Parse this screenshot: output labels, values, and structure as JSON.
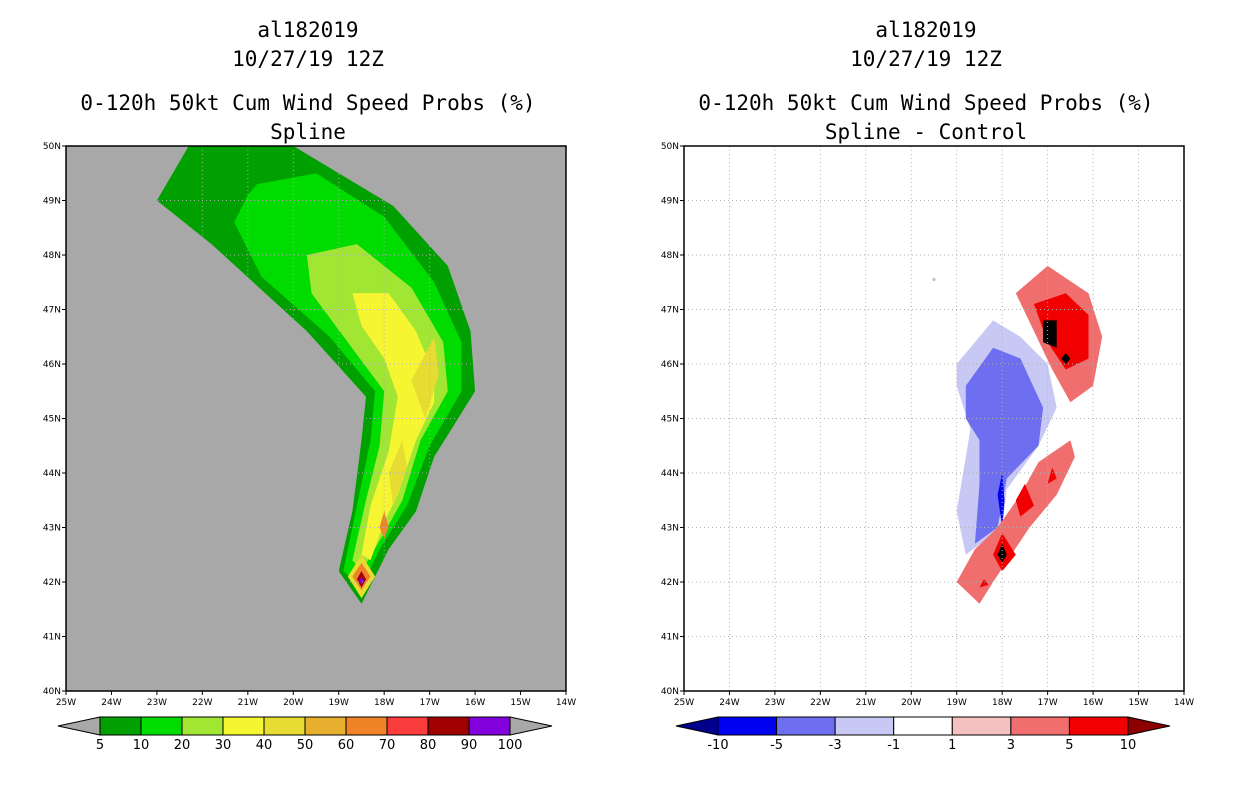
{
  "panels": [
    {
      "title_line1": "al182019",
      "title_line2": "10/27/19 12Z",
      "title_line3": "0-120h 50kt Cum Wind Speed Probs (%)",
      "title_line4": "Spline"
    },
    {
      "title_line1": "al182019",
      "title_line2": "10/27/19 12Z",
      "title_line3": "0-120h 50kt Cum Wind Speed Probs (%)",
      "title_line4": "Spline - Control"
    }
  ],
  "chart_data": [
    {
      "type": "heatmap",
      "title": "0-120h 50kt Cum Wind Speed Probs (%) - Spline",
      "x_ticks": [
        "25W",
        "24W",
        "23W",
        "22W",
        "21W",
        "20W",
        "19W",
        "18W",
        "17W",
        "16W",
        "15W",
        "14W"
      ],
      "y_ticks": [
        "40N",
        "41N",
        "42N",
        "43N",
        "44N",
        "45N",
        "46N",
        "47N",
        "48N",
        "49N",
        "50N"
      ],
      "xlim": [
        -25,
        -14
      ],
      "ylim": [
        40,
        50
      ],
      "background_color": "#a8a8a8",
      "colorbar": {
        "levels": [
          "5",
          "10",
          "20",
          "30",
          "40",
          "50",
          "60",
          "70",
          "80",
          "90",
          "100"
        ],
        "colors": [
          "#00a000",
          "#00dc00",
          "#a0e632",
          "#f5f532",
          "#e6dc32",
          "#e6af2d",
          "#f08228",
          "#fa3c3c",
          "#a00000",
          "#8200dc"
        ],
        "under_color": "#a8a8a8",
        "over_color": "#a8a8a8"
      },
      "contours": [
        {
          "level": 5,
          "points": [
            [
              -22.3,
              50
            ],
            [
              -20,
              50
            ],
            [
              -17.8,
              48.9
            ],
            [
              -16.6,
              47.8
            ],
            [
              -16.1,
              46.6
            ],
            [
              -16.0,
              45.5
            ],
            [
              -16.9,
              44.3
            ],
            [
              -17.3,
              43.3
            ],
            [
              -17.9,
              42.6
            ],
            [
              -18.5,
              41.6
            ],
            [
              -19.0,
              42.2
            ],
            [
              -18.7,
              43.3
            ],
            [
              -18.5,
              44.6
            ],
            [
              -18.4,
              45.4
            ],
            [
              -19.7,
              46.6
            ],
            [
              -21.8,
              48.2
            ],
            [
              -23.0,
              49.0
            ]
          ]
        },
        {
          "level": 10,
          "points": [
            [
              -20.8,
              49.3
            ],
            [
              -19.5,
              49.5
            ],
            [
              -18.0,
              48.7
            ],
            [
              -16.9,
              47.5
            ],
            [
              -16.3,
              46.4
            ],
            [
              -16.3,
              45.5
            ],
            [
              -17.0,
              44.5
            ],
            [
              -17.5,
              43.4
            ],
            [
              -18.1,
              42.6
            ],
            [
              -18.5,
              41.9
            ],
            [
              -18.9,
              42.2
            ],
            [
              -18.6,
              43.4
            ],
            [
              -18.3,
              44.6
            ],
            [
              -18.2,
              45.5
            ],
            [
              -19.2,
              46.5
            ],
            [
              -20.7,
              47.6
            ],
            [
              -21.3,
              48.6
            ],
            [
              -21.0,
              49.1
            ]
          ]
        },
        {
          "level": 20,
          "points": [
            [
              -19.7,
              48.0
            ],
            [
              -18.6,
              48.2
            ],
            [
              -17.4,
              47.4
            ],
            [
              -16.7,
              46.4
            ],
            [
              -16.6,
              45.5
            ],
            [
              -17.2,
              44.6
            ],
            [
              -17.6,
              43.5
            ],
            [
              -18.0,
              42.9
            ],
            [
              -18.5,
              42.2
            ],
            [
              -18.7,
              42.4
            ],
            [
              -18.4,
              43.5
            ],
            [
              -18.1,
              44.5
            ],
            [
              -18.0,
              45.5
            ],
            [
              -18.8,
              46.4
            ],
            [
              -19.6,
              47.3
            ]
          ]
        },
        {
          "level": 30,
          "points": [
            [
              -18.7,
              47.3
            ],
            [
              -17.9,
              47.3
            ],
            [
              -17.3,
              46.6
            ],
            [
              -16.9,
              45.8
            ],
            [
              -16.9,
              45.3
            ],
            [
              -17.3,
              44.6
            ],
            [
              -17.7,
              43.6
            ],
            [
              -18.0,
              43.1
            ],
            [
              -18.3,
              42.4
            ],
            [
              -18.5,
              42.5
            ],
            [
              -18.3,
              43.4
            ],
            [
              -17.9,
              44.4
            ],
            [
              -17.7,
              45.4
            ],
            [
              -18.0,
              46.1
            ],
            [
              -18.5,
              46.7
            ]
          ]
        },
        {
          "level": 40,
          "points": [
            [
              -16.9,
              46.5
            ],
            [
              -16.8,
              45.8
            ],
            [
              -17.1,
              45.0
            ],
            [
              -17.4,
              45.7
            ]
          ]
        },
        {
          "level": 40,
          "points": [
            [
              -17.6,
              44.6
            ],
            [
              -17.5,
              44.1
            ],
            [
              -17.8,
              43.4
            ],
            [
              -17.9,
              44.0
            ]
          ]
        },
        {
          "level": 60,
          "points": [
            [
              -18.0,
              43.3
            ],
            [
              -17.9,
              43.0
            ],
            [
              -18.0,
              42.8
            ],
            [
              -18.1,
              43.0
            ]
          ]
        },
        {
          "level": 40,
          "points": [
            [
              -18.5,
              42.5
            ],
            [
              -18.2,
              42.1
            ],
            [
              -18.5,
              41.7
            ],
            [
              -18.8,
              42.1
            ]
          ]
        },
        {
          "level": 60,
          "points": [
            [
              -18.5,
              42.35
            ],
            [
              -18.3,
              42.1
            ],
            [
              -18.5,
              41.85
            ],
            [
              -18.7,
              42.1
            ]
          ]
        },
        {
          "level": 80,
          "points": [
            [
              -18.5,
              42.2
            ],
            [
              -18.4,
              42.05
            ],
            [
              -18.5,
              41.9
            ],
            [
              -18.6,
              42.05
            ]
          ]
        },
        {
          "level": 90,
          "points": [
            [
              -18.5,
              42.1
            ],
            [
              -18.45,
              42.02
            ],
            [
              -18.5,
              41.95
            ],
            [
              -18.55,
              42.02
            ]
          ]
        }
      ]
    },
    {
      "type": "heatmap",
      "title": "0-120h 50kt Cum Wind Speed Probs (%) - Spline - Control",
      "x_ticks": [
        "25W",
        "24W",
        "23W",
        "22W",
        "21W",
        "20W",
        "19W",
        "18W",
        "17W",
        "16W",
        "15W",
        "14W"
      ],
      "y_ticks": [
        "40N",
        "41N",
        "42N",
        "43N",
        "44N",
        "45N",
        "46N",
        "47N",
        "48N",
        "49N",
        "50N"
      ],
      "xlim": [
        -25,
        -14
      ],
      "ylim": [
        40,
        50
      ],
      "background_color": "#ffffff",
      "colorbar": {
        "levels": [
          "-10",
          "-5",
          "-3",
          "-1",
          "1",
          "3",
          "5",
          "10"
        ],
        "colors": [
          "#0000f0",
          "#6e6ef0",
          "#c8c8f5",
          "#ffffff",
          "#f5c0c0",
          "#f06e6e",
          "#f00000"
        ],
        "under_color": "#00008c",
        "over_color": "#8c0000"
      },
      "contours": [
        {
          "level": -3,
          "points": [
            [
              -19.0,
              46.0
            ],
            [
              -18.2,
              46.8
            ],
            [
              -17.6,
              46.5
            ],
            [
              -17.0,
              46.0
            ],
            [
              -16.8,
              45.2
            ],
            [
              -17.2,
              44.5
            ],
            [
              -17.9,
              43.7
            ],
            [
              -18.0,
              43.0
            ],
            [
              -18.8,
              42.5
            ],
            [
              -19.0,
              43.3
            ],
            [
              -18.7,
              44.8
            ],
            [
              -19.0,
              45.6
            ]
          ]
        },
        {
          "level": -5,
          "points": [
            [
              -18.8,
              45.6
            ],
            [
              -18.2,
              46.3
            ],
            [
              -17.6,
              46.1
            ],
            [
              -17.1,
              45.2
            ],
            [
              -17.2,
              44.5
            ],
            [
              -17.9,
              43.9
            ],
            [
              -18.1,
              43.0
            ],
            [
              -18.6,
              42.7
            ],
            [
              -18.5,
              43.8
            ],
            [
              -18.5,
              44.6
            ],
            [
              -18.8,
              45.0
            ]
          ]
        },
        {
          "level": -10,
          "points": [
            [
              -18.0,
              44.0
            ],
            [
              -17.95,
              43.5
            ],
            [
              -18.0,
              43.0
            ],
            [
              -18.1,
              43.6
            ]
          ]
        },
        {
          "level": -10,
          "points": [
            [
              -18.5,
              42.6
            ],
            [
              -18.4,
              42.5
            ],
            [
              -18.5,
              42.4
            ],
            [
              -18.6,
              42.5
            ]
          ]
        },
        {
          "level": 3,
          "points": [
            [
              -17.7,
              47.3
            ],
            [
              -17.0,
              47.8
            ],
            [
              -16.1,
              47.3
            ],
            [
              -15.8,
              46.5
            ],
            [
              -16.0,
              45.6
            ],
            [
              -16.5,
              45.3
            ],
            [
              -16.9,
              45.9
            ],
            [
              -17.3,
              46.6
            ]
          ]
        },
        {
          "level": 5,
          "points": [
            [
              -17.3,
              47.1
            ],
            [
              -16.6,
              47.3
            ],
            [
              -16.1,
              46.9
            ],
            [
              -16.1,
              46.1
            ],
            [
              -16.6,
              45.9
            ],
            [
              -17.0,
              46.4
            ]
          ]
        },
        {
          "level": 10,
          "points": [
            [
              -17.1,
              46.8
            ],
            [
              -16.8,
              46.8
            ],
            [
              -16.8,
              46.3
            ],
            [
              -17.1,
              46.4
            ]
          ]
        },
        {
          "level": 10,
          "points": [
            [
              -16.6,
              46.2
            ],
            [
              -16.5,
              46.1
            ],
            [
              -16.6,
              46.0
            ],
            [
              -16.7,
              46.1
            ]
          ]
        },
        {
          "level": 3,
          "points": [
            [
              -16.5,
              44.6
            ],
            [
              -16.4,
              44.3
            ],
            [
              -16.8,
              43.6
            ],
            [
              -17.4,
              43.0
            ],
            [
              -17.8,
              42.5
            ],
            [
              -18.2,
              42.0
            ],
            [
              -18.5,
              41.6
            ],
            [
              -19.0,
              42.0
            ],
            [
              -18.6,
              42.6
            ],
            [
              -18.1,
              43.0
            ],
            [
              -17.6,
              43.6
            ],
            [
              -17.2,
              44.2
            ]
          ]
        },
        {
          "level": 5,
          "points": [
            [
              -17.5,
              43.8
            ],
            [
              -17.3,
              43.4
            ],
            [
              -17.6,
              43.2
            ],
            [
              -17.7,
              43.5
            ]
          ]
        },
        {
          "level": 5,
          "points": [
            [
              -18.0,
              42.9
            ],
            [
              -17.7,
              42.5
            ],
            [
              -18.0,
              42.2
            ],
            [
              -18.2,
              42.5
            ]
          ]
        },
        {
          "level": 10,
          "points": [
            [
              -18.0,
              42.7
            ],
            [
              -17.9,
              42.5
            ],
            [
              -18.0,
              42.35
            ],
            [
              -18.1,
              42.5
            ]
          ]
        },
        {
          "level": 5,
          "points": [
            [
              -16.9,
              44.1
            ],
            [
              -16.8,
              43.9
            ],
            [
              -17.0,
              43.8
            ]
          ]
        },
        {
          "level": 5,
          "points": [
            [
              -18.4,
              42.05
            ],
            [
              -18.3,
              41.95
            ],
            [
              -18.5,
              41.9
            ]
          ]
        }
      ],
      "annotations": [
        {
          "type": "dot",
          "x": -19.5,
          "y": 47.55,
          "color": "#c0c0c0"
        }
      ]
    }
  ]
}
